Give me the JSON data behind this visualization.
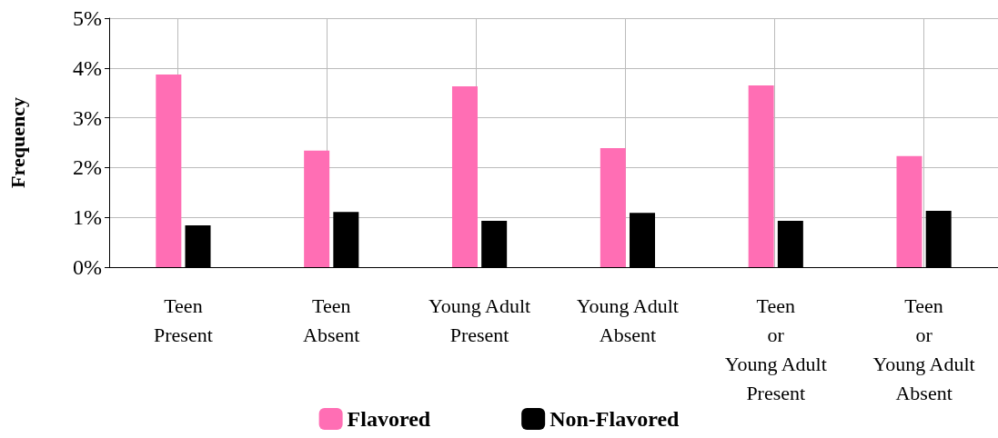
{
  "chart_data": {
    "type": "bar",
    "ylabel": "Frequency",
    "categories": [
      "Teen\nPresent",
      "Teen\nAbsent",
      "Young Adult\nPresent",
      "Young Adult\nAbsent",
      "Teen\nor\nYoung Adult\nPresent",
      "Teen\nor\nYoung Adult\nAbsent"
    ],
    "series": [
      {
        "name": "Flavored",
        "color": "#ff6eb4",
        "values": [
          3.87,
          2.34,
          3.63,
          2.39,
          3.65,
          2.23
        ]
      },
      {
        "name": "Non-Flavored",
        "color": "#000000",
        "values": [
          0.84,
          1.11,
          0.93,
          1.09,
          0.93,
          1.13
        ]
      }
    ],
    "ylim": [
      0,
      5
    ],
    "yticks": [
      {
        "value": 0,
        "label": "0%"
      },
      {
        "value": 1,
        "label": "1%"
      },
      {
        "value": 2,
        "label": "2%"
      },
      {
        "value": 3,
        "label": "3%"
      },
      {
        "value": 4,
        "label": "4%"
      },
      {
        "value": 5,
        "label": "5%"
      }
    ],
    "grid": true,
    "legend": "bottom"
  }
}
